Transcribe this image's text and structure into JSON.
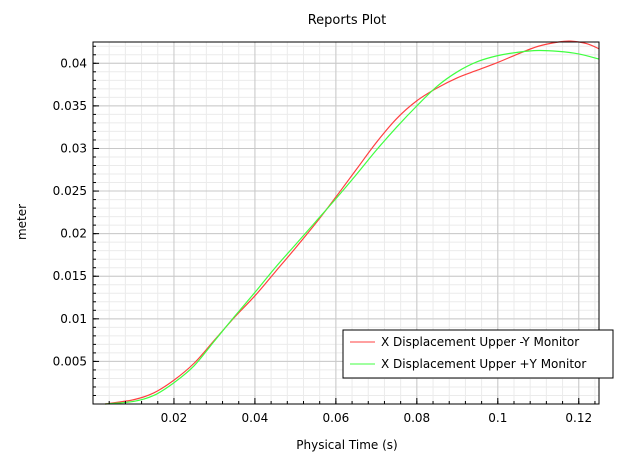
{
  "chart_data": {
    "type": "line",
    "title": "Reports Plot",
    "xlabel": "Physical Time (s)",
    "ylabel": "meter",
    "xlim": [
      0,
      0.125
    ],
    "ylim": [
      0,
      0.0425
    ],
    "x_ticks": [
      0.02,
      0.04,
      0.06,
      0.08,
      0.1,
      0.12
    ],
    "y_ticks": [
      0.005,
      0.01,
      0.015,
      0.02,
      0.025,
      0.03,
      0.035,
      0.04
    ],
    "x_tick_labels": [
      "0.02",
      "0.04",
      "0.06",
      "0.08",
      "0.1",
      "0.12"
    ],
    "y_tick_labels": [
      "0.005",
      "0.01",
      "0.015",
      "0.02",
      "0.025",
      "0.03",
      "0.035",
      "0.04"
    ],
    "grid": true,
    "legend_position": "bottom-right",
    "series": [
      {
        "name": "X Displacement Upper -Y Monitor",
        "color": "#ff4040",
        "x": [
          0.003,
          0.01,
          0.015,
          0.02,
          0.025,
          0.03,
          0.035,
          0.04,
          0.045,
          0.05,
          0.055,
          0.06,
          0.065,
          0.07,
          0.075,
          0.08,
          0.085,
          0.09,
          0.095,
          0.1,
          0.105,
          0.11,
          0.115,
          0.118,
          0.122,
          0.125
        ],
        "y": [
          0.0,
          0.0005,
          0.0013,
          0.0028,
          0.0048,
          0.0075,
          0.0102,
          0.0127,
          0.0155,
          0.0183,
          0.0212,
          0.0243,
          0.0275,
          0.0307,
          0.0335,
          0.0356,
          0.0371,
          0.0383,
          0.0392,
          0.0401,
          0.0411,
          0.042,
          0.0425,
          0.0426,
          0.0423,
          0.0417
        ]
      },
      {
        "name": "X Displacement Upper +Y Monitor",
        "color": "#40ff40",
        "x": [
          0.003,
          0.01,
          0.015,
          0.02,
          0.025,
          0.03,
          0.035,
          0.04,
          0.045,
          0.05,
          0.055,
          0.06,
          0.065,
          0.07,
          0.075,
          0.08,
          0.085,
          0.09,
          0.095,
          0.1,
          0.105,
          0.11,
          0.115,
          0.12,
          0.125
        ],
        "y": [
          0.0,
          0.0003,
          0.001,
          0.0025,
          0.0045,
          0.0074,
          0.0103,
          0.0131,
          0.016,
          0.0187,
          0.0214,
          0.0241,
          0.0269,
          0.0298,
          0.0325,
          0.035,
          0.0373,
          0.039,
          0.0402,
          0.0409,
          0.0413,
          0.0415,
          0.0414,
          0.0411,
          0.0405
        ]
      }
    ]
  }
}
